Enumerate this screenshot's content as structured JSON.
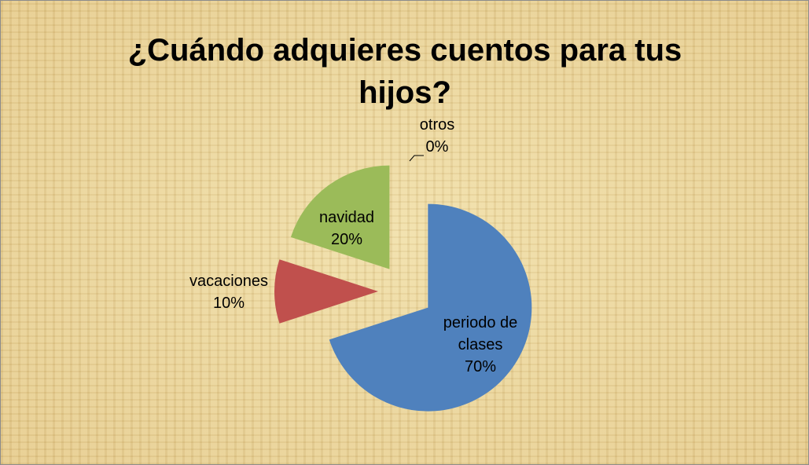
{
  "chart_data": {
    "type": "pie",
    "title": "¿Cuándo adquieres cuentos para tus hijos?",
    "categories": [
      "periodo de clases",
      "vacaciones",
      "navidad",
      "otros"
    ],
    "values": [
      70,
      10,
      20,
      0
    ],
    "value_labels": [
      "70%",
      "10%",
      "20%",
      "0%"
    ],
    "colors": [
      "#4f81bd",
      "#c0504d",
      "#9bbb59",
      "#8064a2"
    ],
    "exploded": true
  }
}
